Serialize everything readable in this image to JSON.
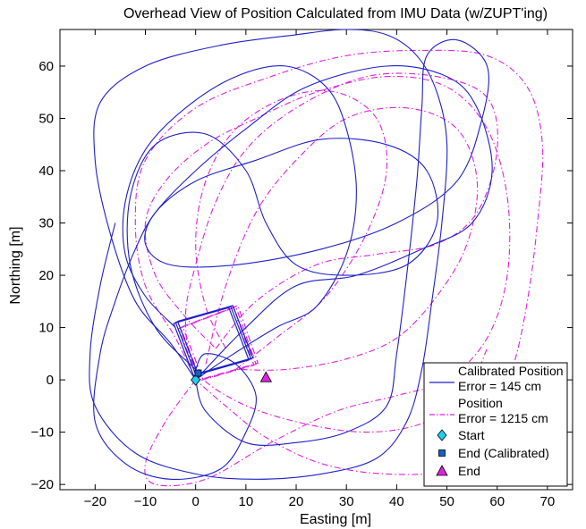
{
  "chart_data": {
    "type": "line",
    "title": "Overhead View of Position Calculated from IMU Data (w/ZUPT'ing)",
    "xlabel": "Easting [m]",
    "ylabel": "Northing [m]",
    "xlim": [
      -27,
      75
    ],
    "ylim": [
      -21,
      67
    ],
    "xticks": [
      -20,
      -10,
      0,
      10,
      20,
      30,
      40,
      50,
      60,
      70
    ],
    "yticks": [
      -20,
      -10,
      0,
      10,
      20,
      30,
      40,
      50,
      60
    ],
    "grid": false,
    "legend_position": "bottom-right",
    "series": [
      {
        "name": "Calibrated Position Error = 145 cm",
        "legend_lines": [
          "Calibrated Position",
          "Error = 145 cm"
        ],
        "color": "#1f1fc8",
        "style": "solid",
        "loops": [
          [
            [
              0,
              0
            ],
            [
              -5,
              7
            ],
            [
              -12,
              15
            ],
            [
              -17,
              28
            ],
            [
              -20,
              42
            ],
            [
              -19,
              53
            ],
            [
              -10,
              60
            ],
            [
              5,
              64
            ],
            [
              20,
              66
            ],
            [
              30,
              67
            ],
            [
              38,
              66
            ],
            [
              44,
              62
            ],
            [
              48,
              55
            ],
            [
              50,
              45
            ],
            [
              49,
              30
            ],
            [
              47,
              15
            ],
            [
              45,
              2
            ],
            [
              42,
              -8
            ],
            [
              36,
              -15
            ],
            [
              25,
              -18
            ],
            [
              12,
              -19
            ],
            [
              0,
              -18
            ],
            [
              -12,
              -14
            ],
            [
              -20,
              -5
            ],
            [
              -21,
              5
            ],
            [
              -19,
              18
            ],
            [
              -16,
              30
            ]
          ],
          [
            [
              0,
              0
            ],
            [
              10,
              10
            ],
            [
              20,
              18
            ],
            [
              32,
              20
            ],
            [
              45,
              25
            ],
            [
              55,
              30
            ],
            [
              59,
              40
            ],
            [
              56,
              52
            ],
            [
              50,
              58
            ],
            [
              38,
              60
            ],
            [
              22,
              56
            ],
            [
              10,
              48
            ],
            [
              0,
              40
            ],
            [
              -8,
              32
            ],
            [
              -12,
              25
            ],
            [
              -16,
              15
            ],
            [
              -19,
              5
            ],
            [
              -20,
              -8
            ],
            [
              -14,
              -16
            ],
            [
              -5,
              -19
            ],
            [
              5,
              -17
            ],
            [
              10,
              -10
            ],
            [
              12,
              -3
            ],
            [
              8,
              3
            ],
            [
              2,
              5
            ],
            [
              0,
              2
            ]
          ],
          [
            [
              0,
              2
            ],
            [
              -8,
              10
            ],
            [
              -13,
              22
            ],
            [
              -13,
              35
            ],
            [
              -8,
              45
            ],
            [
              2,
              47
            ],
            [
              10,
              40
            ],
            [
              14,
              30
            ],
            [
              20,
              22
            ],
            [
              30,
              20
            ],
            [
              42,
              22
            ],
            [
              48,
              30
            ],
            [
              46,
              40
            ],
            [
              38,
              45
            ],
            [
              25,
              46
            ],
            [
              12,
              42
            ],
            [
              0,
              38
            ],
            [
              -8,
              32
            ],
            [
              -10,
              26
            ],
            [
              -5,
              22
            ],
            [
              8,
              22
            ],
            [
              25,
              25
            ],
            [
              40,
              30
            ],
            [
              52,
              38
            ],
            [
              57,
              50
            ],
            [
              58,
              60
            ],
            [
              52,
              65
            ],
            [
              46,
              62
            ],
            [
              45,
              52
            ],
            [
              44,
              38
            ],
            [
              42,
              20
            ],
            [
              40,
              5
            ],
            [
              38,
              -5
            ],
            [
              30,
              -10
            ],
            [
              20,
              -12
            ],
            [
              10,
              -12
            ],
            [
              2,
              -6
            ],
            [
              0,
              0
            ]
          ],
          [
            [
              0,
              0
            ],
            [
              6,
              4
            ],
            [
              16,
              10
            ],
            [
              24,
              14
            ],
            [
              30,
              24
            ],
            [
              32,
              36
            ],
            [
              30,
              48
            ],
            [
              26,
              56
            ],
            [
              18,
              60
            ],
            [
              8,
              58
            ],
            [
              -2,
              52
            ],
            [
              -10,
              44
            ],
            [
              -14,
              34
            ],
            [
              -14,
              24
            ],
            [
              -10,
              16
            ],
            [
              -4,
              10
            ]
          ]
        ],
        "square": [
          [
            -4,
            11
          ],
          [
            7,
            14
          ],
          [
            11,
            4
          ],
          [
            0,
            1
          ],
          [
            -4,
            11
          ]
        ]
      },
      {
        "name": "Position Error = 1215 cm",
        "legend_lines": [
          "Position",
          "Error = 1215 cm"
        ],
        "color": "#e020e0",
        "style": "dashdot",
        "loops": [
          [
            [
              0,
              0
            ],
            [
              -4,
              8
            ],
            [
              -10,
              18
            ],
            [
              -12,
              30
            ],
            [
              -10,
              42
            ],
            [
              0,
              52
            ],
            [
              15,
              58
            ],
            [
              30,
              62
            ],
            [
              45,
              63
            ],
            [
              58,
              62
            ],
            [
              66,
              56
            ],
            [
              69,
              45
            ],
            [
              68,
              30
            ],
            [
              66,
              15
            ],
            [
              63,
              2
            ],
            [
              58,
              -10
            ],
            [
              50,
              -17
            ],
            [
              38,
              -18
            ],
            [
              25,
              -16
            ],
            [
              14,
              -11
            ],
            [
              6,
              -5
            ],
            [
              0,
              0
            ]
          ],
          [
            [
              0,
              0
            ],
            [
              -6,
              -8
            ],
            [
              -10,
              -16
            ],
            [
              -8,
              -20
            ],
            [
              2,
              -19
            ],
            [
              15,
              -12
            ],
            [
              28,
              -6
            ],
            [
              40,
              -3
            ],
            [
              50,
              0
            ],
            [
              58,
              8
            ],
            [
              62,
              20
            ],
            [
              62,
              35
            ],
            [
              58,
              48
            ],
            [
              50,
              56
            ],
            [
              38,
              58
            ],
            [
              24,
              55
            ],
            [
              12,
              50
            ],
            [
              2,
              45
            ],
            [
              -6,
              38
            ],
            [
              -10,
              30
            ],
            [
              -8,
              20
            ],
            [
              -2,
              12
            ],
            [
              4,
              6
            ]
          ],
          [
            [
              4,
              6
            ],
            [
              12,
              15
            ],
            [
              24,
              22
            ],
            [
              36,
              24
            ],
            [
              48,
              26
            ],
            [
              56,
              32
            ],
            [
              60,
              44
            ],
            [
              58,
              54
            ],
            [
              48,
              58
            ],
            [
              34,
              58
            ],
            [
              20,
              52
            ],
            [
              10,
              44
            ],
            [
              4,
              34
            ],
            [
              0,
              22
            ],
            [
              -2,
              12
            ],
            [
              0,
              2
            ],
            [
              8,
              -4
            ],
            [
              20,
              -8
            ],
            [
              34,
              -10
            ],
            [
              46,
              -8
            ],
            [
              54,
              -2
            ],
            [
              58,
              6
            ]
          ],
          [
            [
              2,
              3
            ],
            [
              6,
              18
            ],
            [
              12,
              32
            ],
            [
              20,
              42
            ],
            [
              30,
              50
            ],
            [
              42,
              52
            ],
            [
              52,
              48
            ],
            [
              56,
              38
            ],
            [
              54,
              26
            ],
            [
              48,
              16
            ],
            [
              40,
              8
            ],
            [
              30,
              4
            ],
            [
              18,
              2
            ],
            [
              8,
              2
            ]
          ],
          [
            [
              8,
              2
            ],
            [
              16,
              8
            ],
            [
              26,
              16
            ],
            [
              34,
              28
            ],
            [
              38,
              40
            ],
            [
              36,
              50
            ],
            [
              28,
              55
            ],
            [
              18,
              54
            ],
            [
              8,
              48
            ],
            [
              2,
              38
            ],
            [
              0,
              26
            ],
            [
              2,
              14
            ],
            [
              6,
              6
            ]
          ]
        ],
        "square": [
          [
            -3,
            10
          ],
          [
            8,
            14
          ],
          [
            12,
            3
          ],
          [
            1,
            0
          ],
          [
            -3,
            10
          ]
        ]
      }
    ],
    "markers": [
      {
        "name": "Start",
        "x": 0,
        "y": 0,
        "shape": "diamond",
        "color": "#20d0f0"
      },
      {
        "name": "End (Calibrated)",
        "x": 0.5,
        "y": 1.3,
        "shape": "square",
        "color": "#1060d0"
      },
      {
        "name": "End",
        "x": 14,
        "y": 0.5,
        "shape": "triangle",
        "color": "#e020e0"
      }
    ]
  }
}
